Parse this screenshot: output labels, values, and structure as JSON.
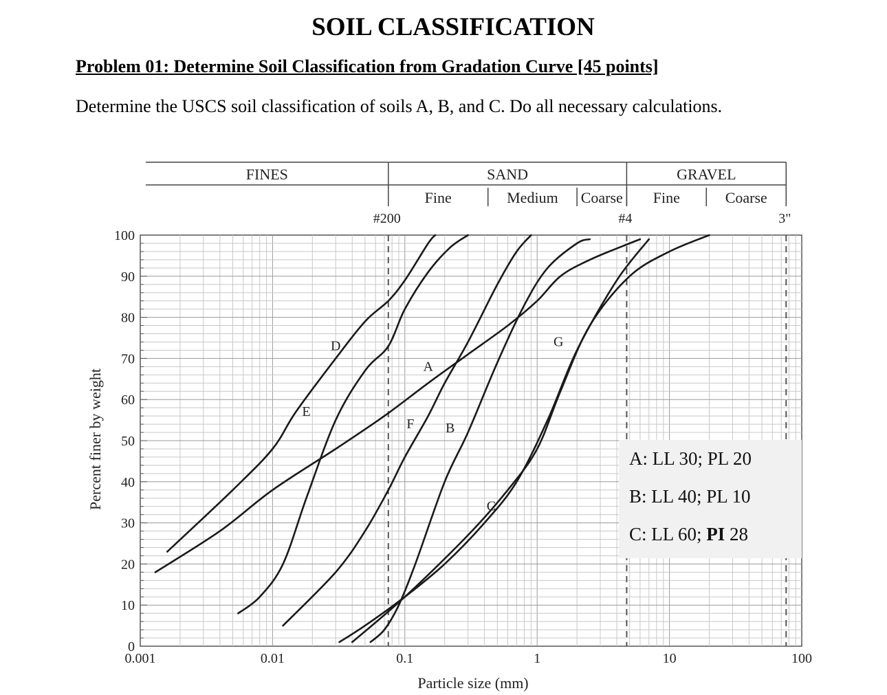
{
  "header": {
    "title": "SOIL CLASSIFICATION",
    "problem": "Problem 01: Determine Soil Classification from Gradation Curve [45 points]",
    "instructions": "Determine the USCS soil classification of soils A, B, and C. Do all necessary calculations."
  },
  "limits": [
    {
      "soil": "A",
      "text": "A: LL 30; PL 20"
    },
    {
      "soil": "B",
      "text": "B: LL 40; PL 10"
    },
    {
      "soil": "C",
      "prefix": "C: LL 60; ",
      "bold": "PI",
      "suffix": " 28"
    }
  ],
  "chart_data": {
    "type": "line",
    "xlabel": "Particle size (mm)",
    "ylabel": "Percent finer by weight",
    "xscale": "log",
    "xlim": [
      0.001,
      100
    ],
    "ylim": [
      0,
      100
    ],
    "grid": true,
    "x_ticks": [
      "0.001",
      "0.01",
      "0.1",
      "1",
      "10",
      "100"
    ],
    "y_ticks": [
      "0",
      "10",
      "20",
      "30",
      "40",
      "50",
      "60",
      "70",
      "80",
      "90",
      "100"
    ],
    "soil_bands": [
      {
        "label": "FINES",
        "from": 0.001,
        "to": 0.075
      },
      {
        "label": "SAND",
        "from": 0.075,
        "to": 4.75
      },
      {
        "label": "GRAVEL",
        "from": 4.75,
        "to": 76.2
      }
    ],
    "sub_bands": [
      {
        "label": "Fine",
        "from": 0.075,
        "to": 0.425
      },
      {
        "label": "Medium",
        "from": 0.425,
        "to": 2.0
      },
      {
        "label": "Coarse",
        "from": 2.0,
        "to": 4.75
      },
      {
        "label": "Fine",
        "from": 4.75,
        "to": 19.0
      },
      {
        "label": "Coarse",
        "from": 19.0,
        "to": 76.2
      }
    ],
    "sieves": [
      {
        "label": "#200",
        "size": 0.075
      },
      {
        "label": "#4",
        "size": 4.75
      },
      {
        "label": "3\"",
        "size": 76.2
      }
    ],
    "series": [
      {
        "name": "D",
        "points": [
          [
            0.0016,
            23
          ],
          [
            0.005,
            38
          ],
          [
            0.01,
            48
          ],
          [
            0.015,
            57
          ],
          [
            0.03,
            70
          ],
          [
            0.05,
            79
          ],
          [
            0.075,
            84
          ],
          [
            0.1,
            89
          ],
          [
            0.15,
            98
          ],
          [
            0.17,
            100
          ]
        ]
      },
      {
        "name": "E",
        "points": [
          [
            0.0055,
            8
          ],
          [
            0.008,
            12
          ],
          [
            0.012,
            20
          ],
          [
            0.018,
            36
          ],
          [
            0.03,
            55
          ],
          [
            0.05,
            67
          ],
          [
            0.075,
            73
          ],
          [
            0.1,
            82
          ],
          [
            0.15,
            91
          ],
          [
            0.22,
            97
          ],
          [
            0.3,
            100
          ]
        ]
      },
      {
        "name": "A",
        "points": [
          [
            0.0013,
            18
          ],
          [
            0.004,
            28
          ],
          [
            0.01,
            38
          ],
          [
            0.03,
            48
          ],
          [
            0.07,
            56
          ],
          [
            0.15,
            64
          ],
          [
            0.3,
            71
          ],
          [
            0.6,
            78
          ],
          [
            1.0,
            84
          ],
          [
            1.5,
            90
          ],
          [
            2.5,
            94
          ],
          [
            5.0,
            98
          ],
          [
            6.0,
            99
          ]
        ]
      },
      {
        "name": "F",
        "points": [
          [
            0.012,
            5
          ],
          [
            0.03,
            18
          ],
          [
            0.05,
            28
          ],
          [
            0.075,
            38
          ],
          [
            0.1,
            46
          ],
          [
            0.15,
            56
          ],
          [
            0.2,
            64
          ],
          [
            0.3,
            74
          ],
          [
            0.5,
            88
          ],
          [
            0.7,
            96
          ],
          [
            0.9,
            100
          ]
        ]
      },
      {
        "name": "B",
        "points": [
          [
            0.055,
            1
          ],
          [
            0.07,
            4
          ],
          [
            0.09,
            10
          ],
          [
            0.12,
            20
          ],
          [
            0.2,
            40
          ],
          [
            0.3,
            52
          ],
          [
            0.5,
            69
          ],
          [
            0.8,
            83
          ],
          [
            1.2,
            92
          ],
          [
            2.0,
            98
          ],
          [
            2.5,
            99
          ]
        ]
      },
      {
        "name": "C",
        "points": [
          [
            0.032,
            1
          ],
          [
            0.05,
            5
          ],
          [
            0.1,
            12
          ],
          [
            0.2,
            20
          ],
          [
            0.4,
            30
          ],
          [
            0.7,
            40
          ],
          [
            1.2,
            55
          ],
          [
            2.0,
            72
          ],
          [
            4.0,
            89
          ],
          [
            7.0,
            99
          ]
        ]
      },
      {
        "name": "G",
        "points": [
          [
            0.04,
            1
          ],
          [
            0.1,
            12
          ],
          [
            0.3,
            27
          ],
          [
            0.6,
            38
          ],
          [
            1.0,
            48
          ],
          [
            1.5,
            62
          ],
          [
            2.5,
            78
          ],
          [
            5.0,
            90
          ],
          [
            10.0,
            96
          ],
          [
            20.0,
            100
          ]
        ]
      }
    ]
  }
}
